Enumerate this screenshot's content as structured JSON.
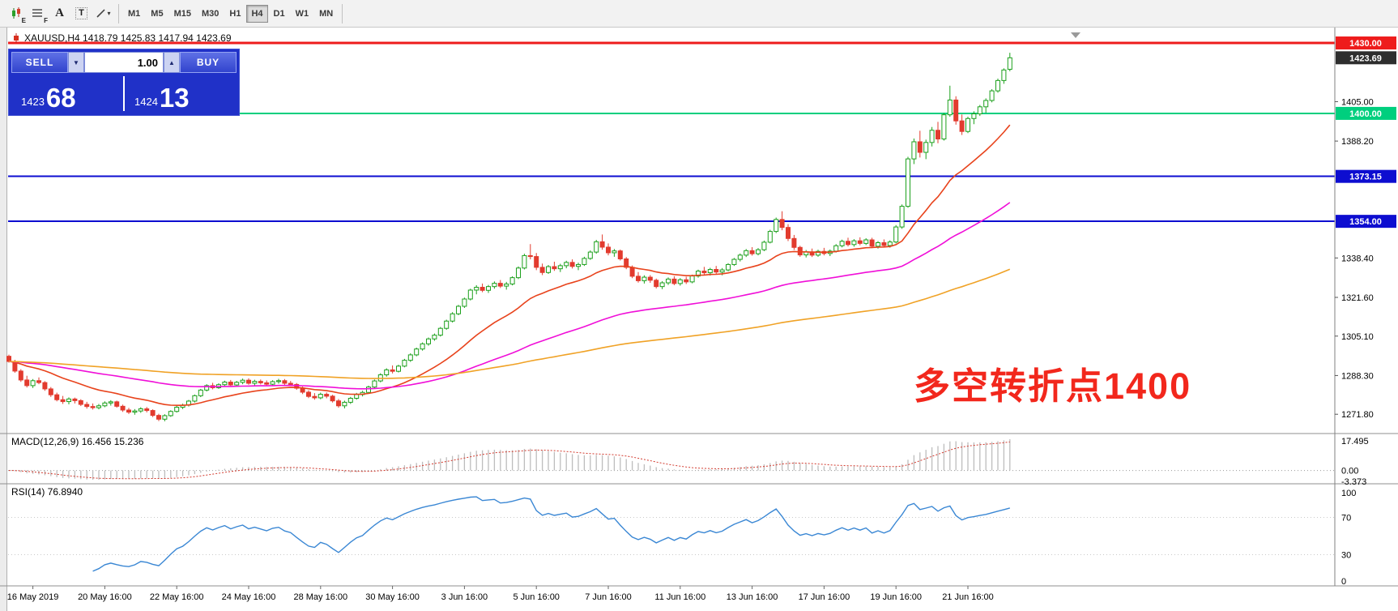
{
  "toolbar": {
    "icon_buttons": [
      {
        "name": "candlestick-chart-icon",
        "kind": "candles",
        "badge": "E"
      },
      {
        "name": "line-list-icon",
        "kind": "lines",
        "badge": "F"
      },
      {
        "name": "cursor-tool-icon",
        "kind": "letter",
        "label": "A"
      },
      {
        "name": "text-tool-icon",
        "kind": "boxed",
        "label": "T"
      },
      {
        "name": "draw-tools-icon",
        "kind": "draw",
        "caret": "▾"
      }
    ],
    "timeframes": [
      "M1",
      "M5",
      "M15",
      "M30",
      "H1",
      "H4",
      "D1",
      "W1",
      "MN"
    ],
    "active_timeframe": "H4"
  },
  "trade_panel": {
    "sell_label": "SELL",
    "buy_label": "BUY",
    "volume": "1.00",
    "sell_price_small": "1423",
    "sell_price_big": "68",
    "buy_price_small": "1424",
    "buy_price_big": "13"
  },
  "chart": {
    "title": "XAUUSD,H4 1418.79 1425.83 1417.94 1423.69",
    "annotation": {
      "text": "多空转折点1400",
      "color": "#f2271c"
    },
    "hlines": [
      {
        "price": 1430.0,
        "label": "1430.00",
        "color": "#ee1c1c",
        "width": 3
      },
      {
        "price": 1400.0,
        "label": "1400.00",
        "color": "#00cf7e",
        "width": 2
      },
      {
        "price": 1373.15,
        "label": "1373.15",
        "color": "#0d0dd0",
        "width": 2
      },
      {
        "price": 1354.0,
        "label": "1354.00",
        "color": "#0d0dd0",
        "width": 2
      }
    ],
    "current_price": {
      "value": "1423.69",
      "badge_color": "#2e2e2e"
    },
    "y_ticks": [
      {
        "v": 1405.0,
        "t": "1405.00"
      },
      {
        "v": 1388.2,
        "t": "1388.20"
      },
      {
        "v": 1338.4,
        "t": "1338.40"
      },
      {
        "v": 1321.6,
        "t": "1321.60"
      },
      {
        "v": 1305.1,
        "t": "1305.10"
      },
      {
        "v": 1288.3,
        "t": "1288.30"
      },
      {
        "v": 1271.8,
        "t": "1271.80"
      }
    ]
  },
  "chart_data": {
    "type": "candlestick",
    "symbol": "XAUUSD",
    "timeframe": "H4",
    "current_bar": {
      "open": 1418.79,
      "high": 1425.83,
      "low": 1417.94,
      "close": 1423.69
    },
    "price_range": [
      1266,
      1434.5
    ],
    "colors": {
      "up": "#1ca01c",
      "down": "#e23b2e"
    },
    "moving_averages": [
      {
        "period": 20,
        "color": "#e8431c"
      },
      {
        "period": 68,
        "color": "#f00fd8"
      },
      {
        "period": 170,
        "color": "#f0a226"
      }
    ],
    "ohlc": [
      [
        1296.5,
        1297.2,
        1293.8,
        1294.3
      ],
      [
        1294.3,
        1295.0,
        1289.5,
        1290.2
      ],
      [
        1290.2,
        1291.0,
        1285.6,
        1286.4
      ],
      [
        1286.4,
        1288.2,
        1283.2,
        1284.0
      ],
      [
        1284.0,
        1286.8,
        1283.0,
        1286.1
      ],
      [
        1286.1,
        1287.5,
        1284.6,
        1285.3
      ],
      [
        1285.3,
        1285.9,
        1281.8,
        1282.6
      ],
      [
        1282.6,
        1283.4,
        1279.2,
        1280.1
      ],
      [
        1280.1,
        1281.0,
        1277.3,
        1278.0
      ],
      [
        1278.0,
        1279.6,
        1276.2,
        1277.2
      ],
      [
        1277.2,
        1279.0,
        1276.0,
        1278.3
      ],
      [
        1278.3,
        1278.9,
        1276.4,
        1277.6
      ],
      [
        1277.6,
        1278.2,
        1275.3,
        1276.0
      ],
      [
        1276.0,
        1277.1,
        1274.2,
        1275.1
      ],
      [
        1275.1,
        1276.4,
        1273.8,
        1274.6
      ],
      [
        1274.6,
        1276.2,
        1273.9,
        1275.4
      ],
      [
        1275.4,
        1277.3,
        1274.8,
        1276.6
      ],
      [
        1276.6,
        1277.8,
        1275.5,
        1277.1
      ],
      [
        1277.1,
        1277.6,
        1274.6,
        1275.2
      ],
      [
        1275.2,
        1275.9,
        1272.8,
        1273.6
      ],
      [
        1273.6,
        1274.5,
        1271.9,
        1272.7
      ],
      [
        1272.7,
        1274.0,
        1271.6,
        1273.2
      ],
      [
        1273.2,
        1274.8,
        1272.4,
        1274.1
      ],
      [
        1274.1,
        1274.9,
        1272.6,
        1273.4
      ],
      [
        1273.4,
        1273.9,
        1270.6,
        1271.3
      ],
      [
        1271.3,
        1272.0,
        1268.9,
        1269.7
      ],
      [
        1269.7,
        1271.8,
        1268.8,
        1271.2
      ],
      [
        1271.2,
        1273.5,
        1270.7,
        1273.0
      ],
      [
        1273.0,
        1275.4,
        1272.5,
        1274.8
      ],
      [
        1274.8,
        1276.3,
        1274.0,
        1275.7
      ],
      [
        1275.7,
        1277.9,
        1275.1,
        1277.4
      ],
      [
        1277.4,
        1280.2,
        1276.8,
        1279.7
      ],
      [
        1279.7,
        1282.6,
        1279.1,
        1282.1
      ],
      [
        1282.1,
        1284.6,
        1281.5,
        1284.0
      ],
      [
        1284.0,
        1285.2,
        1282.4,
        1283.1
      ],
      [
        1283.1,
        1285.0,
        1282.6,
        1284.4
      ],
      [
        1284.4,
        1286.1,
        1283.6,
        1285.5
      ],
      [
        1285.5,
        1286.4,
        1283.8,
        1284.3
      ],
      [
        1284.3,
        1286.0,
        1283.5,
        1285.4
      ],
      [
        1285.4,
        1287.0,
        1284.6,
        1286.3
      ],
      [
        1286.3,
        1287.1,
        1284.4,
        1285.0
      ],
      [
        1285.0,
        1286.5,
        1284.1,
        1285.8
      ],
      [
        1285.8,
        1286.6,
        1284.5,
        1285.2
      ],
      [
        1285.2,
        1286.2,
        1283.9,
        1284.6
      ],
      [
        1284.6,
        1286.3,
        1284.0,
        1285.7
      ],
      [
        1285.7,
        1286.9,
        1284.8,
        1286.1
      ],
      [
        1286.1,
        1286.8,
        1284.3,
        1285.0
      ],
      [
        1285.0,
        1286.0,
        1283.8,
        1284.5
      ],
      [
        1284.5,
        1285.1,
        1282.2,
        1282.9
      ],
      [
        1282.9,
        1283.6,
        1280.4,
        1281.2
      ],
      [
        1281.2,
        1282.0,
        1278.7,
        1279.4
      ],
      [
        1279.4,
        1280.8,
        1278.0,
        1278.8
      ],
      [
        1278.8,
        1281.0,
        1278.2,
        1280.3
      ],
      [
        1280.3,
        1281.1,
        1278.6,
        1279.5
      ],
      [
        1279.5,
        1280.1,
        1276.8,
        1277.5
      ],
      [
        1277.5,
        1278.3,
        1274.6,
        1275.4
      ],
      [
        1275.4,
        1277.6,
        1274.3,
        1276.9
      ],
      [
        1276.9,
        1279.2,
        1276.2,
        1278.6
      ],
      [
        1278.6,
        1280.9,
        1278.0,
        1280.2
      ],
      [
        1280.2,
        1281.8,
        1279.4,
        1281.1
      ],
      [
        1281.1,
        1284.0,
        1280.6,
        1283.4
      ],
      [
        1283.4,
        1286.6,
        1282.9,
        1286.0
      ],
      [
        1286.0,
        1289.3,
        1285.4,
        1288.6
      ],
      [
        1288.6,
        1291.4,
        1287.8,
        1290.7
      ],
      [
        1290.7,
        1292.6,
        1289.2,
        1290.1
      ],
      [
        1290.1,
        1292.9,
        1289.6,
        1292.3
      ],
      [
        1292.3,
        1295.4,
        1291.8,
        1294.8
      ],
      [
        1294.8,
        1297.8,
        1294.1,
        1297.1
      ],
      [
        1297.1,
        1300.2,
        1296.5,
        1299.6
      ],
      [
        1299.6,
        1302.4,
        1298.9,
        1301.8
      ],
      [
        1301.8,
        1304.5,
        1301.0,
        1303.9
      ],
      [
        1303.9,
        1306.2,
        1303.1,
        1305.5
      ],
      [
        1305.5,
        1309.0,
        1304.9,
        1308.4
      ],
      [
        1308.4,
        1312.1,
        1307.8,
        1311.5
      ],
      [
        1311.5,
        1315.3,
        1310.9,
        1314.6
      ],
      [
        1314.6,
        1318.4,
        1314.0,
        1317.8
      ],
      [
        1317.8,
        1321.5,
        1317.1,
        1320.9
      ],
      [
        1320.9,
        1325.3,
        1320.3,
        1324.7
      ],
      [
        1324.7,
        1326.8,
        1322.9,
        1325.9
      ],
      [
        1325.9,
        1327.5,
        1323.8,
        1324.6
      ],
      [
        1324.6,
        1326.9,
        1323.5,
        1326.2
      ],
      [
        1326.2,
        1328.4,
        1325.3,
        1327.6
      ],
      [
        1327.6,
        1329.0,
        1325.6,
        1326.4
      ],
      [
        1326.4,
        1328.2,
        1324.9,
        1327.3
      ],
      [
        1327.3,
        1330.6,
        1326.7,
        1330.0
      ],
      [
        1330.0,
        1334.8,
        1329.4,
        1334.1
      ],
      [
        1334.1,
        1340.2,
        1333.5,
        1339.4
      ],
      [
        1339.4,
        1344.3,
        1337.8,
        1339.0
      ],
      [
        1339.0,
        1340.5,
        1333.2,
        1334.4
      ],
      [
        1334.4,
        1336.0,
        1331.1,
        1332.2
      ],
      [
        1332.2,
        1335.4,
        1331.6,
        1334.7
      ],
      [
        1334.7,
        1336.8,
        1332.9,
        1333.8
      ],
      [
        1333.8,
        1335.9,
        1332.4,
        1335.1
      ],
      [
        1335.1,
        1337.2,
        1334.0,
        1336.5
      ],
      [
        1336.5,
        1337.8,
        1333.9,
        1334.8
      ],
      [
        1334.8,
        1336.4,
        1333.2,
        1335.6
      ],
      [
        1335.6,
        1338.9,
        1335.0,
        1338.2
      ],
      [
        1338.2,
        1341.6,
        1337.6,
        1340.9
      ],
      [
        1340.9,
        1346.1,
        1340.2,
        1345.3
      ],
      [
        1345.3,
        1348.4,
        1341.9,
        1343.0
      ],
      [
        1343.0,
        1344.6,
        1339.5,
        1340.6
      ],
      [
        1340.6,
        1342.2,
        1338.9,
        1341.4
      ],
      [
        1341.4,
        1342.0,
        1337.3,
        1338.0
      ],
      [
        1338.0,
        1338.8,
        1333.6,
        1334.4
      ],
      [
        1334.4,
        1335.2,
        1329.8,
        1330.6
      ],
      [
        1330.6,
        1332.4,
        1327.9,
        1328.7
      ],
      [
        1328.7,
        1331.0,
        1327.5,
        1330.2
      ],
      [
        1330.2,
        1331.1,
        1327.8,
        1328.9
      ],
      [
        1328.9,
        1329.6,
        1325.4,
        1326.2
      ],
      [
        1326.2,
        1328.5,
        1325.1,
        1327.8
      ],
      [
        1327.8,
        1330.1,
        1326.9,
        1329.4
      ],
      [
        1329.4,
        1330.6,
        1326.8,
        1327.5
      ],
      [
        1327.5,
        1329.8,
        1326.6,
        1329.1
      ],
      [
        1329.1,
        1330.4,
        1327.3,
        1328.2
      ],
      [
        1328.2,
        1331.3,
        1327.6,
        1330.7
      ],
      [
        1330.7,
        1333.4,
        1330.0,
        1332.8
      ],
      [
        1332.8,
        1334.6,
        1331.2,
        1332.1
      ],
      [
        1332.1,
        1334.2,
        1330.9,
        1333.5
      ],
      [
        1333.5,
        1335.0,
        1331.6,
        1332.4
      ],
      [
        1332.4,
        1334.1,
        1331.0,
        1333.3
      ],
      [
        1333.3,
        1336.2,
        1332.7,
        1335.6
      ],
      [
        1335.6,
        1338.4,
        1335.0,
        1337.8
      ],
      [
        1337.8,
        1340.3,
        1336.9,
        1339.6
      ],
      [
        1339.6,
        1342.2,
        1338.8,
        1341.5
      ],
      [
        1341.5,
        1343.0,
        1339.4,
        1340.2
      ],
      [
        1340.2,
        1342.6,
        1339.5,
        1341.9
      ],
      [
        1341.9,
        1345.8,
        1341.3,
        1345.1
      ],
      [
        1345.1,
        1350.4,
        1344.6,
        1349.7
      ],
      [
        1349.7,
        1355.6,
        1349.0,
        1354.8
      ],
      [
        1354.8,
        1358.3,
        1350.2,
        1351.4
      ],
      [
        1351.4,
        1352.8,
        1345.6,
        1346.7
      ],
      [
        1346.7,
        1348.2,
        1341.8,
        1342.9
      ],
      [
        1342.9,
        1343.6,
        1338.9,
        1339.7
      ],
      [
        1339.7,
        1341.8,
        1338.6,
        1341.0
      ],
      [
        1341.0,
        1342.4,
        1338.8,
        1339.6
      ],
      [
        1339.6,
        1341.9,
        1338.9,
        1341.2
      ],
      [
        1341.2,
        1342.7,
        1339.5,
        1340.3
      ],
      [
        1340.3,
        1342.0,
        1339.2,
        1341.3
      ],
      [
        1341.3,
        1344.3,
        1340.7,
        1343.6
      ],
      [
        1343.6,
        1346.2,
        1342.9,
        1345.5
      ],
      [
        1345.5,
        1347.0,
        1343.3,
        1344.1
      ],
      [
        1344.1,
        1346.4,
        1343.2,
        1345.7
      ],
      [
        1345.7,
        1347.2,
        1343.8,
        1344.6
      ],
      [
        1344.6,
        1346.8,
        1343.9,
        1346.1
      ],
      [
        1346.1,
        1347.0,
        1342.6,
        1343.4
      ],
      [
        1343.4,
        1345.6,
        1342.4,
        1344.9
      ],
      [
        1344.9,
        1346.3,
        1342.9,
        1343.7
      ],
      [
        1343.7,
        1345.9,
        1342.8,
        1345.2
      ],
      [
        1345.2,
        1352.4,
        1344.6,
        1351.6
      ],
      [
        1351.6,
        1361.2,
        1350.8,
        1360.4
      ],
      [
        1360.4,
        1381.5,
        1359.8,
        1380.6
      ],
      [
        1380.6,
        1389.3,
        1378.4,
        1387.9
      ],
      [
        1387.9,
        1392.6,
        1381.2,
        1383.4
      ],
      [
        1383.4,
        1388.8,
        1380.5,
        1387.6
      ],
      [
        1387.6,
        1394.2,
        1385.9,
        1392.8
      ],
      [
        1392.8,
        1396.4,
        1387.3,
        1389.1
      ],
      [
        1389.1,
        1400.2,
        1388.4,
        1399.4
      ],
      [
        1399.4,
        1411.8,
        1398.6,
        1405.7
      ],
      [
        1405.7,
        1407.3,
        1395.2,
        1396.8
      ],
      [
        1396.8,
        1399.5,
        1390.8,
        1392.3
      ],
      [
        1392.3,
        1398.6,
        1391.6,
        1397.8
      ],
      [
        1397.8,
        1400.9,
        1395.4,
        1399.8
      ],
      [
        1399.8,
        1403.6,
        1398.9,
        1402.8
      ],
      [
        1402.8,
        1406.4,
        1400.2,
        1405.5
      ],
      [
        1405.5,
        1410.3,
        1404.7,
        1409.6
      ],
      [
        1409.6,
        1414.8,
        1408.8,
        1414.0
      ],
      [
        1414.0,
        1419.2,
        1412.6,
        1418.5
      ],
      [
        1418.79,
        1425.83,
        1417.94,
        1423.69
      ]
    ],
    "x_labels": [
      {
        "i": 4,
        "t": "16 May 2019"
      },
      {
        "i": 16,
        "t": "20 May 16:00"
      },
      {
        "i": 28,
        "t": "22 May 16:00"
      },
      {
        "i": 40,
        "t": "24 May 16:00"
      },
      {
        "i": 52,
        "t": "28 May 16:00"
      },
      {
        "i": 64,
        "t": "30 May 16:00"
      },
      {
        "i": 76,
        "t": "3 Jun 16:00"
      },
      {
        "i": 88,
        "t": "5 Jun 16:00"
      },
      {
        "i": 100,
        "t": "7 Jun 16:00"
      },
      {
        "i": 112,
        "t": "11 Jun 16:00"
      },
      {
        "i": 124,
        "t": "13 Jun 16:00"
      },
      {
        "i": 136,
        "t": "17 Jun 16:00"
      },
      {
        "i": 148,
        "t": "19 Jun 16:00"
      },
      {
        "i": 160,
        "t": "21 Jun 16:00"
      }
    ],
    "macd": {
      "label": "MACD(12,26,9) 16.456 15.236",
      "fast": 12,
      "slow": 26,
      "signal": 9,
      "main_value": 16.456,
      "signal_value": 15.236,
      "axis_labels": [
        "17.495",
        "0.00",
        "-3.373"
      ]
    },
    "rsi": {
      "label": "RSI(14) 76.8940",
      "period": 14,
      "value": 76.894,
      "axis_labels": [
        "100",
        "70",
        "30",
        "0"
      ],
      "levels": [
        70,
        30
      ]
    }
  }
}
